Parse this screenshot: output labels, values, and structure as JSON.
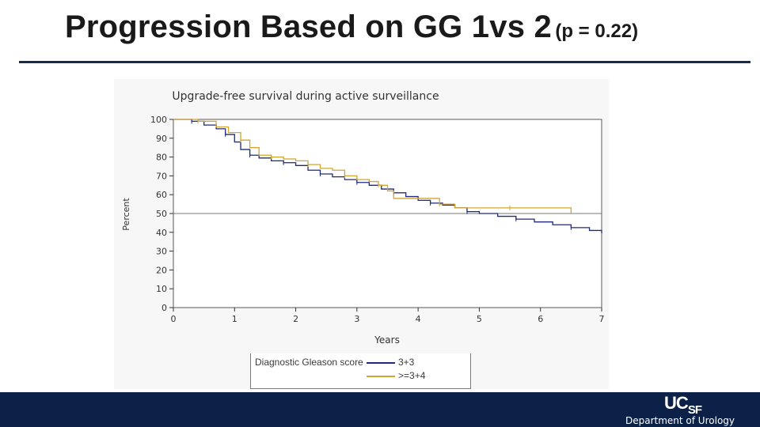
{
  "slide": {
    "title": "Progression Based on GG 1vs 2",
    "subtitle": "(p = 0.22)",
    "footer_logo": "UC",
    "footer_logo_suffix": "SF",
    "footer_text": "Department of Urology",
    "colors": {
      "rule": "#1b2c4b",
      "footer": "#0b2148"
    }
  },
  "chart_data": {
    "type": "line",
    "title": "Upgrade-free survival during active surveillance",
    "xlabel": "Years",
    "ylabel": "Percent",
    "xlim": [
      0,
      7
    ],
    "ylim": [
      0,
      100
    ],
    "xticks": [
      "0",
      "1",
      "2",
      "3",
      "4",
      "5",
      "6",
      "7"
    ],
    "yticks": [
      "0",
      "10",
      "20",
      "30",
      "40",
      "50",
      "60",
      "70",
      "80",
      "90",
      "100"
    ],
    "reference_line": 50,
    "grid": false,
    "legend": {
      "title": "Diagnostic Gleason score",
      "placement": "bottom"
    },
    "series": [
      {
        "name": "3+3",
        "color": "#1f2a7a",
        "x": [
          0,
          0.3,
          0.5,
          0.7,
          0.85,
          1.0,
          1.1,
          1.25,
          1.4,
          1.6,
          1.8,
          2.0,
          2.2,
          2.4,
          2.6,
          2.8,
          3.0,
          3.2,
          3.4,
          3.6,
          3.8,
          4.0,
          4.2,
          4.4,
          4.6,
          4.8,
          5.0,
          5.3,
          5.6,
          5.9,
          6.2,
          6.5,
          6.8,
          7.0
        ],
        "values": [
          100,
          99,
          97,
          95,
          92,
          88,
          84,
          81,
          79.5,
          78,
          77,
          75.5,
          73,
          71,
          69.5,
          68,
          66.5,
          65,
          63,
          61,
          59,
          57,
          55.5,
          54.5,
          53,
          51,
          50,
          48.5,
          47,
          45.5,
          44,
          42.5,
          41,
          39.5
        ]
      },
      {
        "name": ">=3+4",
        "color": "#d1a531",
        "x": [
          0,
          0.4,
          0.7,
          0.9,
          1.1,
          1.25,
          1.4,
          1.6,
          1.8,
          2.0,
          2.2,
          2.4,
          2.6,
          2.8,
          3.0,
          3.2,
          3.35,
          3.5,
          3.6,
          4.35,
          4.6,
          5.0,
          5.5,
          6.0,
          6.5
        ],
        "values": [
          100,
          99,
          96,
          93,
          89,
          85,
          81,
          80,
          79,
          78,
          76,
          74,
          73,
          70,
          68,
          67,
          65,
          62,
          58,
          55,
          53,
          53,
          53,
          53,
          50
        ]
      }
    ]
  }
}
